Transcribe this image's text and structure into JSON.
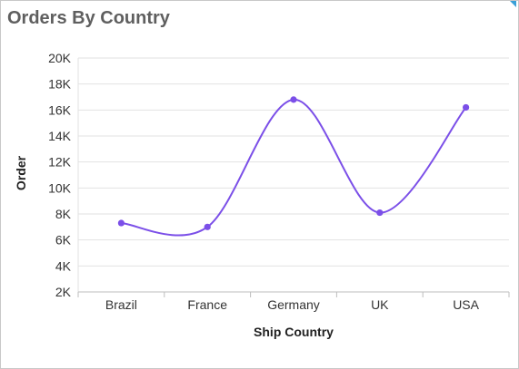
{
  "panel": {
    "title": "Orders By Country"
  },
  "colors": {
    "series": "#7b4fe8",
    "grid": "#e2e2e2",
    "axis": "#bdbdbd"
  },
  "chart_data": {
    "type": "line",
    "smooth": true,
    "title": "Orders By Country",
    "xlabel": "Ship Country",
    "ylabel": "Order",
    "categories": [
      "Brazil",
      "France",
      "Germany",
      "UK",
      "USA"
    ],
    "y_ticks": [
      "2K",
      "4K",
      "6K",
      "8K",
      "10K",
      "12K",
      "14K",
      "16K",
      "18K",
      "20K"
    ],
    "ylim": [
      2000,
      20000
    ],
    "grid": true,
    "series": [
      {
        "values": [
          7300,
          7000,
          16800,
          8100,
          16200
        ]
      }
    ]
  }
}
